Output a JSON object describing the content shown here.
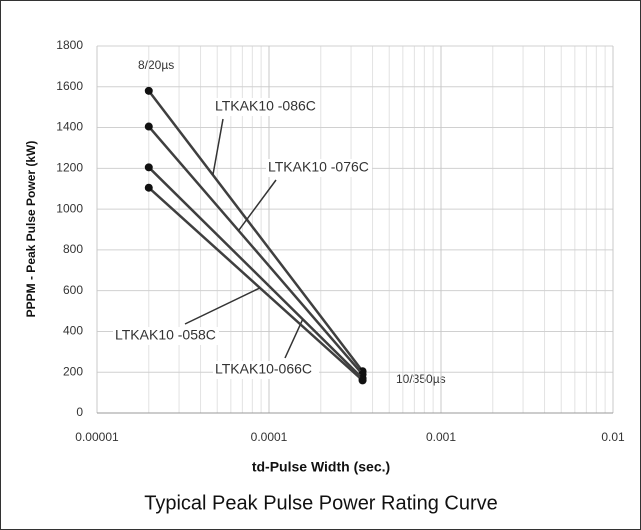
{
  "chart_data": {
    "type": "line",
    "x": [
      2e-05,
      0.00035
    ],
    "series": [
      {
        "name": "LTKAK10 -086C",
        "color": "#3f3f3f",
        "values": [
          1580,
          205
        ]
      },
      {
        "name": "LTKAK10 -076C",
        "color": "#3f3f3f",
        "values": [
          1405,
          190
        ]
      },
      {
        "name": "LTKAK10-066C",
        "color": "#3f3f3f",
        "values": [
          1205,
          170
        ]
      },
      {
        "name": "LTKAK10 -058C",
        "color": "#3f3f3f",
        "values": [
          1105,
          160
        ]
      }
    ],
    "xlim": [
      1e-05,
      0.01
    ],
    "xticks": [
      1e-05,
      0.0001,
      0.001,
      0.01
    ],
    "xscale": "log",
    "ylim": [
      0,
      1800
    ],
    "yticks": [
      0,
      200,
      400,
      600,
      800,
      1000,
      1200,
      1400,
      1600,
      1800
    ],
    "grid": true,
    "xlabel": "td-Pulse Width (sec.)",
    "ylabel": "PPPM - Peak Pulse Power (kW)",
    "annotations": [
      "8/20µs",
      "10/350µs"
    ],
    "caption": "Typical Peak Pulse Power Rating Curve"
  }
}
